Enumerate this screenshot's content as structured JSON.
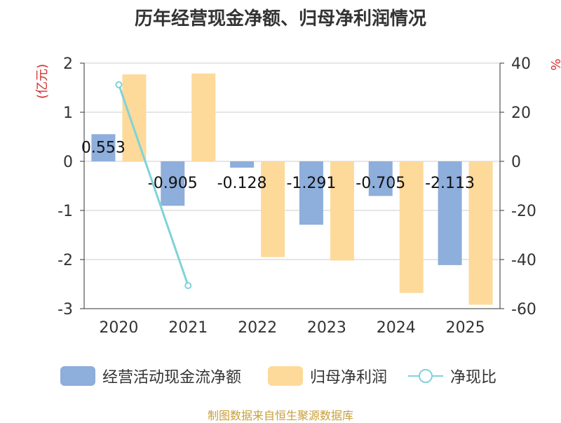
{
  "title": "历年经营现金净额、归母净利润情况",
  "source": "制图数据来自恒生聚源数据库",
  "colors": {
    "operating_cash": "#8eaedb",
    "net_profit": "#fdd99a",
    "ratio": "#7fd3d8",
    "unit_red": "#d32f2f",
    "grid": "#cccccc",
    "axis": "#333333",
    "text": "#333333"
  },
  "chart_data": {
    "type": "bar",
    "title": "历年经营现金净额、归母净利润情况",
    "categories": [
      "2020",
      "2021",
      "2022",
      "2023",
      "2024",
      "2025"
    ],
    "y_left": {
      "label": "(亿元)",
      "ylim": [
        -3,
        2
      ],
      "ticks": [
        2,
        1,
        0,
        -1,
        -2,
        -3
      ]
    },
    "y_right": {
      "label": "%",
      "ylim": [
        -60,
        40
      ],
      "ticks": [
        40,
        20,
        0,
        -20,
        -40,
        -60
      ]
    },
    "series": [
      {
        "name": "经营活动现金流净额",
        "type": "bar",
        "axis": "left",
        "values": [
          0.553,
          -0.905,
          -0.128,
          -1.291,
          -0.705,
          -2.113
        ],
        "labels": [
          "0.553",
          "-0.905",
          "-0.128",
          "-1.291",
          "-0.705",
          "-2.113"
        ]
      },
      {
        "name": "归母净利润",
        "type": "bar",
        "axis": "left",
        "values": [
          1.77,
          1.79,
          -1.95,
          -2.02,
          -2.68,
          -2.92
        ]
      },
      {
        "name": "净现比",
        "type": "line",
        "axis": "right",
        "values": [
          31.2,
          -50.6,
          null,
          null,
          null,
          null
        ]
      }
    ],
    "legend": [
      "经营活动现金流净额",
      "归母净利润",
      "净现比"
    ],
    "legend_position": "bottom",
    "grid": true
  }
}
